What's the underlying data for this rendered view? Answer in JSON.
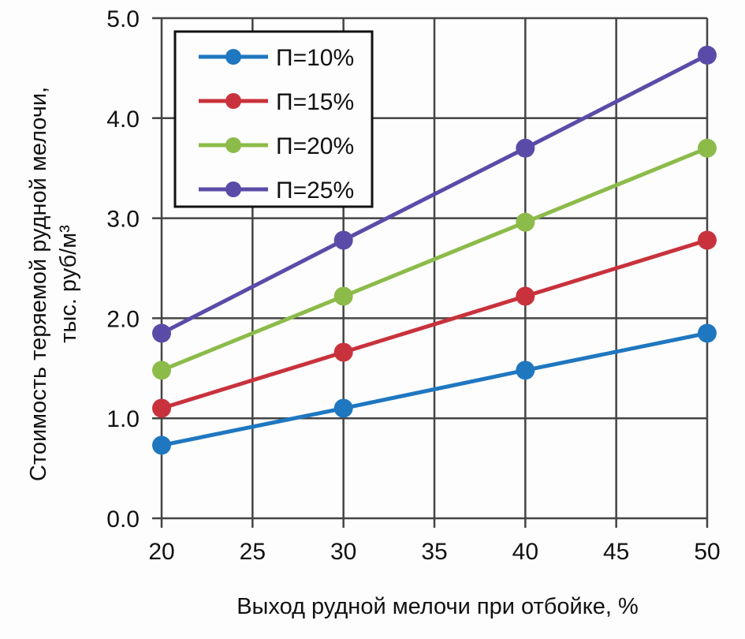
{
  "chart_data": {
    "type": "line",
    "title": "",
    "xlabel": "Выход рудной мелочи при отбойке, %",
    "ylabel_line1": "Стоимость теряемой рудной мелочи,",
    "ylabel_line2": "тыс. руб/м³",
    "x": [
      20,
      30,
      40,
      50
    ],
    "xlim": [
      20,
      50
    ],
    "ylim": [
      0,
      5
    ],
    "x_ticks": [
      "20",
      "25",
      "30",
      "35",
      "40",
      "45",
      "50"
    ],
    "y_ticks": [
      "0.0",
      "1.0",
      "2.0",
      "3.0",
      "4.0",
      "5.0"
    ],
    "grid": true,
    "legend_position": "upper-left",
    "series": [
      {
        "name": "П=10%",
        "color": "#1f77c0",
        "values": [
          0.73,
          1.1,
          1.48,
          1.85
        ]
      },
      {
        "name": "П=15%",
        "color": "#c8323c",
        "values": [
          1.1,
          1.66,
          2.22,
          2.78
        ]
      },
      {
        "name": "П=20%",
        "color": "#8cbb4a",
        "values": [
          1.48,
          2.22,
          2.96,
          3.7
        ]
      },
      {
        "name": "П=25%",
        "color": "#5b4ba8",
        "values": [
          1.85,
          2.78,
          3.7,
          4.63
        ]
      }
    ]
  }
}
